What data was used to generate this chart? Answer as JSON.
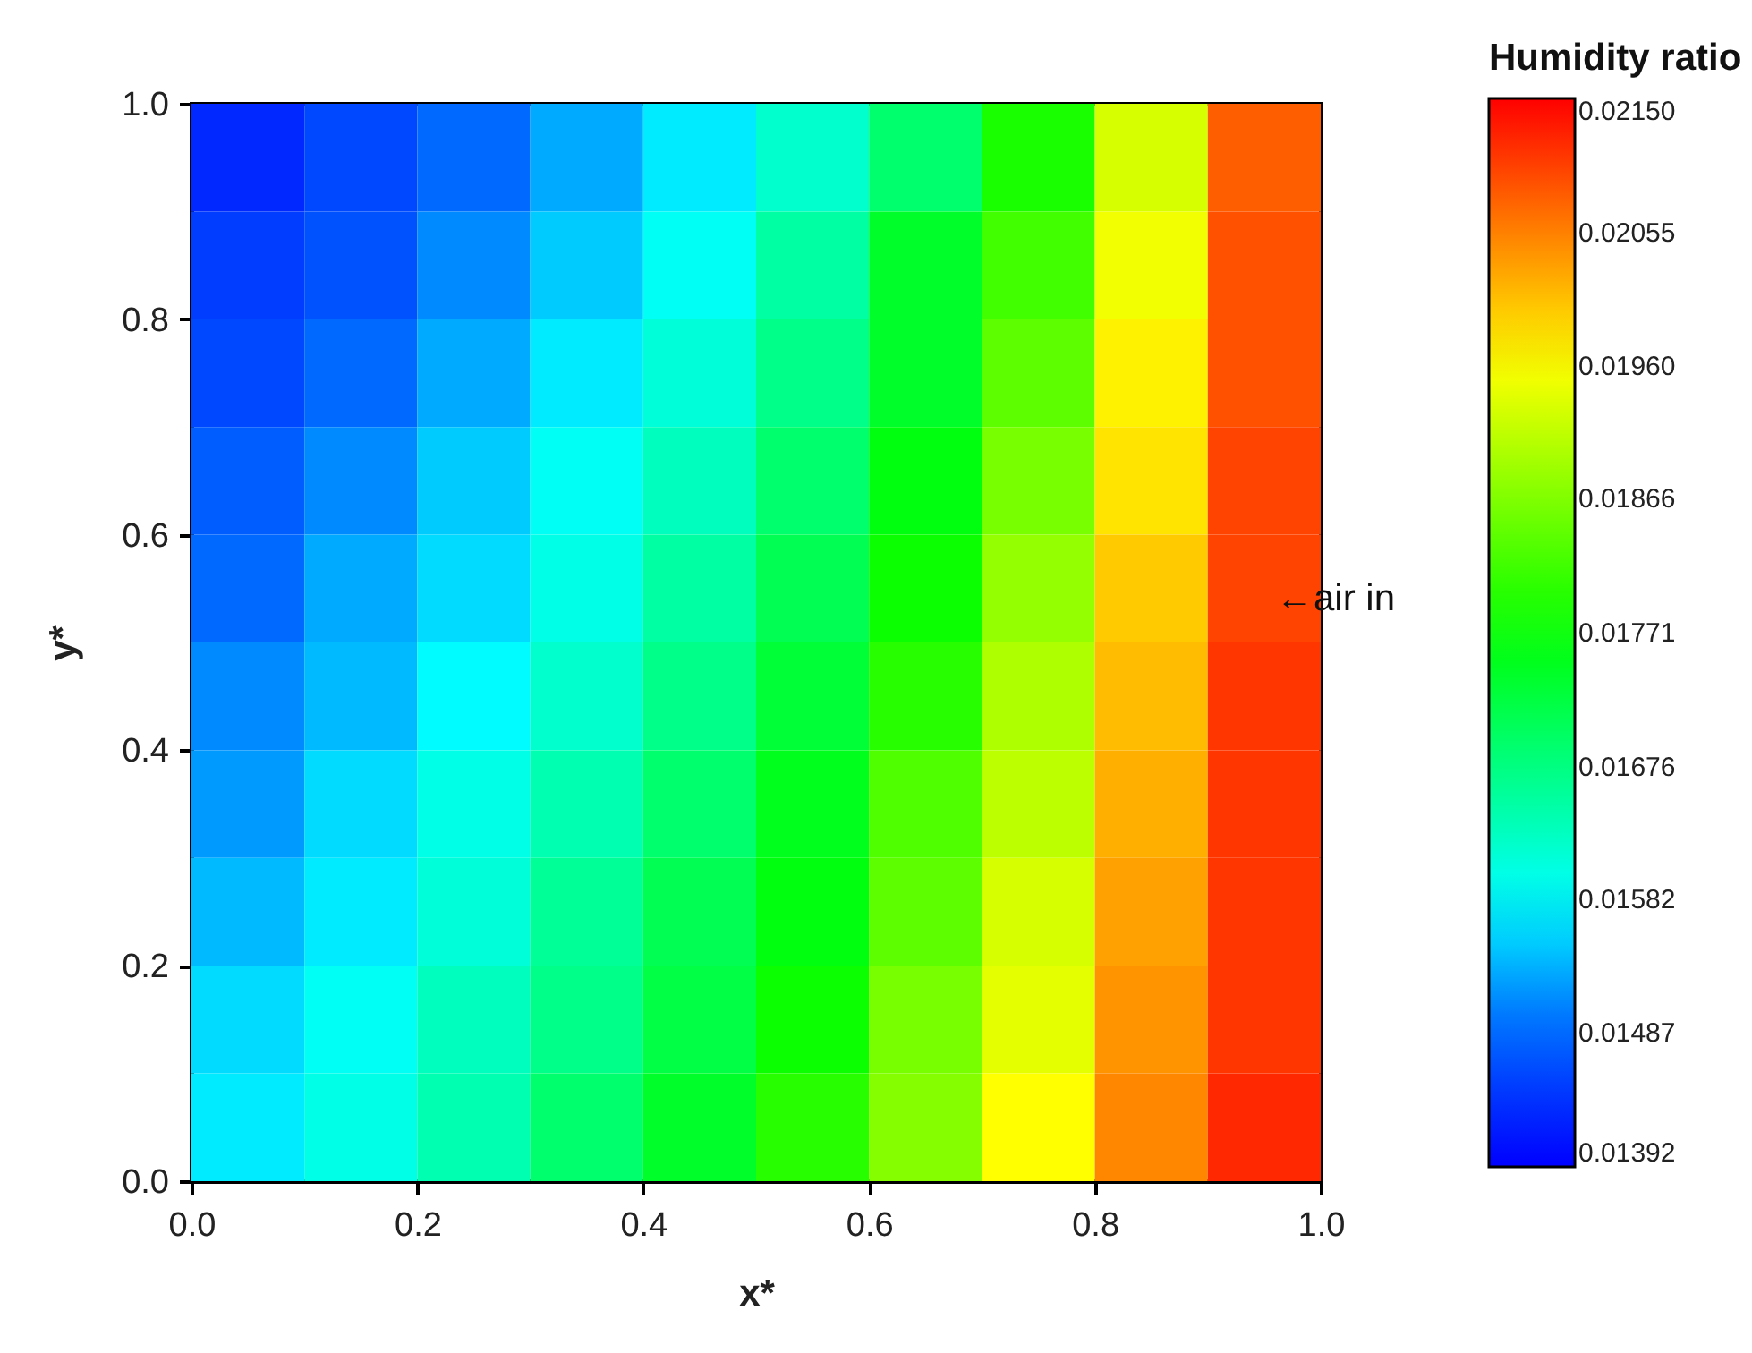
{
  "chart_data": {
    "type": "heatmap",
    "xlabel": "x*",
    "ylabel": "y*",
    "legend_title": "Humidity ratio",
    "x": [
      0.05,
      0.15,
      0.25,
      0.35,
      0.45,
      0.55,
      0.65,
      0.75,
      0.85,
      0.95
    ],
    "y": [
      0.95,
      0.85,
      0.75,
      0.65,
      0.55,
      0.45,
      0.35,
      0.25,
      0.15,
      0.05
    ],
    "xlim": [
      0,
      1
    ],
    "xticks": [
      {
        "value": 0,
        "label": "0.0"
      },
      0.2,
      0.4,
      0.6,
      0.8,
      {
        "value": 1,
        "label": "1.0"
      }
    ],
    "ylim": [
      0,
      1
    ],
    "yticks": [
      {
        "value": 0,
        "label": "0.0"
      },
      0.2,
      0.4,
      0.6,
      0.8,
      {
        "value": 1,
        "label": "1.0"
      }
    ],
    "clim": [
      0.01392,
      0.0215
    ],
    "cticks": [
      0.01392,
      0.01487,
      0.01582,
      0.01676,
      0.01771,
      0.01866,
      {
        "value": 0.0196,
        "label": "0.01960"
      },
      0.02055,
      {
        "value": 0.0215,
        "label": "0.02150"
      }
    ],
    "colors": [
      "#0000ff",
      "#0064ff",
      "#00ffff",
      "#00ff80",
      "#00ff00",
      "#80ff00",
      "#ffff00",
      "#ff8000",
      "#ff0000"
    ],
    "cells": [
      [
        0.0143,
        0.0146,
        0.0149,
        0.0153,
        0.0157,
        0.0162,
        0.0169,
        0.0179,
        0.0193,
        0.0208
      ],
      [
        0.0145,
        0.0147,
        0.0151,
        0.0155,
        0.0159,
        0.0165,
        0.0174,
        0.0182,
        0.0195,
        0.0209
      ],
      [
        0.0146,
        0.0149,
        0.0153,
        0.0157,
        0.0161,
        0.0167,
        0.0174,
        0.0184,
        0.0197,
        0.0209
      ],
      [
        0.0148,
        0.0151,
        0.0155,
        0.0159,
        0.0163,
        0.0169,
        0.0176,
        0.0186,
        0.0198,
        0.021
      ],
      [
        0.0149,
        0.0153,
        0.0156,
        0.016,
        0.0165,
        0.0171,
        0.0178,
        0.0188,
        0.02,
        0.021
      ],
      [
        0.0151,
        0.0154,
        0.0158,
        0.0162,
        0.0167,
        0.0173,
        0.018,
        0.019,
        0.0201,
        0.0211
      ],
      [
        0.0152,
        0.0156,
        0.016,
        0.0164,
        0.0169,
        0.0175,
        0.0183,
        0.0191,
        0.0202,
        0.0211
      ],
      [
        0.0154,
        0.0157,
        0.0161,
        0.0166,
        0.0171,
        0.0176,
        0.0184,
        0.0193,
        0.0203,
        0.0211
      ],
      [
        0.0156,
        0.0159,
        0.0163,
        0.0167,
        0.0172,
        0.0178,
        0.0186,
        0.0194,
        0.0204,
        0.0211
      ],
      [
        0.0157,
        0.016,
        0.0164,
        0.0169,
        0.0174,
        0.018,
        0.0187,
        0.0196,
        0.0205,
        0.0212
      ]
    ],
    "annotations": [
      "←air in"
    ]
  }
}
